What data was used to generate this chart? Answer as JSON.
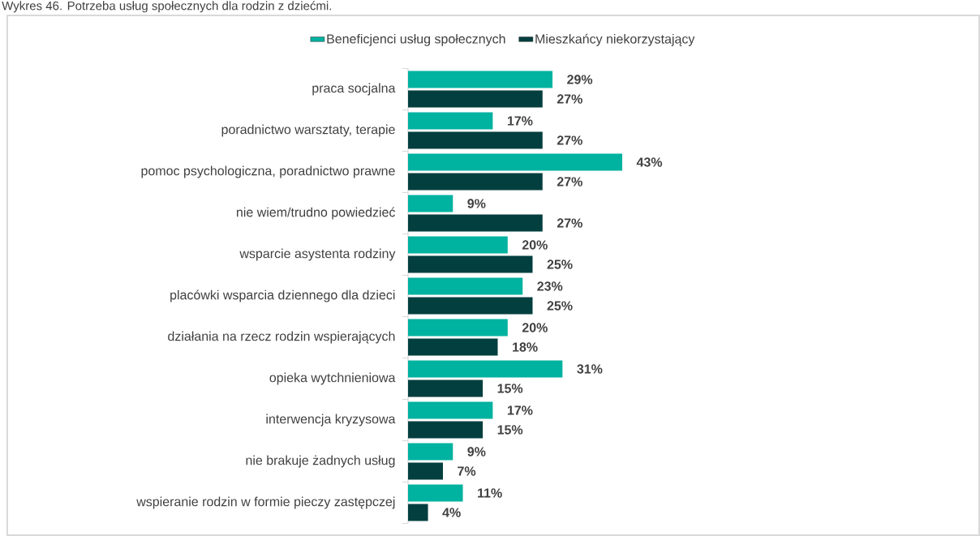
{
  "chart_data": {
    "type": "bar",
    "orientation": "horizontal",
    "title": "Wykres 46. Potrzeba usług społecznych dla rodzin z dziećmi.",
    "categories": [
      "praca socjalna",
      "poradnictwo warsztaty, terapie",
      "pomoc psychologiczna, poradnictwo prawne",
      "nie wiem/trudno powiedzieć",
      "wsparcie asystenta rodziny",
      "placówki wsparcia dziennego dla dzieci",
      "działania na rzecz rodzin wspierających",
      "opieka wytchnieniowa",
      "interwencja kryzysowa",
      "nie brakuje żadnych usług",
      "wspieranie rodzin w formie pieczy zastępczej"
    ],
    "series": [
      {
        "name": "Beneficjenci usług społecznych",
        "color": "#00b2a0",
        "values": [
          29,
          17,
          43,
          9,
          20,
          23,
          20,
          31,
          17,
          9,
          11
        ],
        "value_labels": [
          "29%",
          "17%",
          "43%",
          "9%",
          "20%",
          "23%",
          "20%",
          "31%",
          "17%",
          "9%",
          "11%"
        ]
      },
      {
        "name": "Mieszkańcy niekorzystający",
        "color": "#043f3f",
        "values": [
          27,
          27,
          27,
          27,
          25,
          25,
          18,
          15,
          15,
          7,
          4
        ],
        "value_labels": [
          "27%",
          "27%",
          "27%",
          "27%",
          "25%",
          "25%",
          "18%",
          "15%",
          "15%",
          "7%",
          "4%"
        ]
      }
    ],
    "legend": "top"
  }
}
